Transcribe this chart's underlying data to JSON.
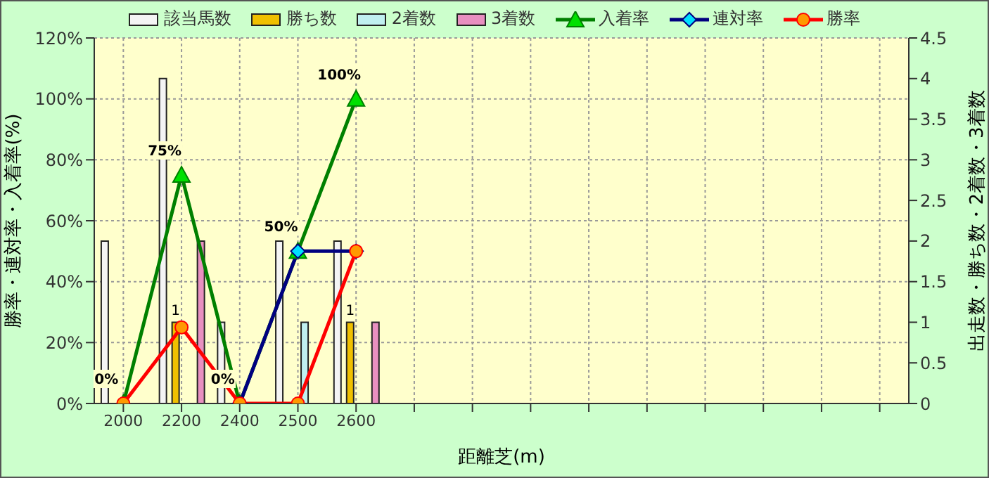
{
  "chart_data": {
    "type": "bar",
    "xlabel": "距離芝(m)",
    "ylabel": "勝率・連対率・入着率(%)",
    "y2label": "出走数・勝ち数・2着数・3着数",
    "categories": [
      "2000",
      "2200",
      "2400",
      "2500",
      "2600",
      null,
      null,
      null,
      null,
      null,
      null,
      null,
      null,
      null
    ],
    "series": [
      {
        "name": "該当馬数",
        "axis": "y2",
        "color": "#f4f4f4",
        "values": [
          2,
          4,
          1,
          2,
          2,
          null,
          null,
          null,
          null,
          null,
          null,
          null,
          null,
          null
        ]
      },
      {
        "name": "勝ち数",
        "axis": "y2",
        "color": "#f0c000",
        "values": [
          0,
          1,
          0,
          0,
          1,
          null,
          null,
          null,
          null,
          null,
          null,
          null,
          null,
          null
        ],
        "value_labels": [
          null,
          "1",
          null,
          null,
          "1",
          null,
          null,
          null,
          null,
          null,
          null,
          null,
          null,
          null
        ]
      },
      {
        "name": "2着数",
        "axis": "y2",
        "color": "#c0f0f0",
        "values": [
          0,
          0,
          0,
          1,
          0,
          null,
          null,
          null,
          null,
          null,
          null,
          null,
          null,
          null
        ]
      },
      {
        "name": "3着数",
        "axis": "y2",
        "color": "#e890c0",
        "values": [
          0,
          2,
          0,
          0,
          1,
          null,
          null,
          null,
          null,
          null,
          null,
          null,
          null,
          null
        ]
      },
      {
        "name": "入着率",
        "type": "line",
        "axis": "y",
        "color": "#008000",
        "marker": "triangle",
        "values": [
          0,
          75,
          0,
          50,
          100,
          null,
          null,
          null,
          null,
          null,
          null,
          null,
          null,
          null
        ],
        "value_labels": [
          "0%",
          "75%",
          "0%",
          "50%",
          "100%",
          null,
          null,
          null,
          null,
          null,
          null,
          null,
          null,
          null
        ]
      },
      {
        "name": "連対率",
        "type": "line",
        "axis": "y",
        "color": "#000080",
        "marker": "diamond",
        "values": [
          null,
          null,
          0,
          50,
          50,
          null,
          null,
          null,
          null,
          null,
          null,
          null,
          null,
          null
        ]
      },
      {
        "name": "勝率",
        "type": "line",
        "axis": "y",
        "color": "#ff0000",
        "marker": "circle",
        "values": [
          0,
          25,
          0,
          0,
          50,
          null,
          null,
          null,
          null,
          null,
          null,
          null,
          null,
          null
        ]
      }
    ],
    "ylim": [
      0,
      120
    ],
    "yticks": [
      {
        "value": 0,
        "label": "0%"
      },
      {
        "value": 20,
        "label": "20%"
      },
      {
        "value": 40,
        "label": "40%"
      },
      {
        "value": 60,
        "label": "60%"
      },
      {
        "value": 80,
        "label": "80%"
      },
      {
        "value": 100,
        "label": "100%"
      },
      {
        "value": 120,
        "label": "120%"
      }
    ],
    "y2lim": [
      0,
      4.5
    ],
    "y2ticks": [
      0,
      0.5,
      1,
      1.5,
      2,
      2.5,
      3,
      3.5,
      4,
      4.5
    ],
    "grid": true,
    "legend": "top"
  }
}
